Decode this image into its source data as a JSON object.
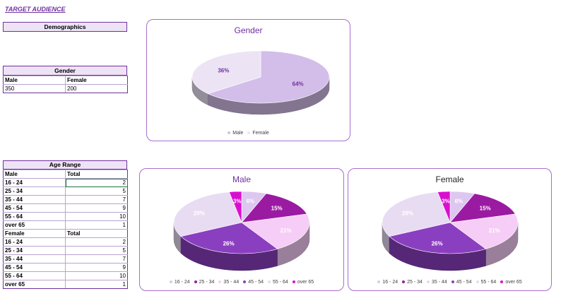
{
  "page_title": "TARGET AUDIENCE",
  "demographics_header": "Demographics",
  "gender_table": {
    "header": "Gender",
    "col1": "Male",
    "col2": "Female",
    "val1": "350",
    "val2": "200"
  },
  "age_table": {
    "header": "Age Range",
    "male_label": "Male",
    "total_label": "Total",
    "female_label": "Female",
    "male_rows": [
      {
        "range": "16 - 24",
        "total": "2"
      },
      {
        "range": "25 - 34",
        "total": "5"
      },
      {
        "range": "35 - 44",
        "total": "7"
      },
      {
        "range": "45 - 54",
        "total": "9"
      },
      {
        "range": "55 - 64",
        "total": "10"
      },
      {
        "range": "over 65",
        "total": "1"
      }
    ],
    "female_rows": [
      {
        "range": "16 - 24",
        "total": "2"
      },
      {
        "range": "25 - 34",
        "total": "5"
      },
      {
        "range": "35 - 44",
        "total": "7"
      },
      {
        "range": "45 - 54",
        "total": "9"
      },
      {
        "range": "55 - 64",
        "total": "10"
      },
      {
        "range": "over 65",
        "total": "1"
      }
    ]
  },
  "chart_data": [
    {
      "type": "pie",
      "title": "Gender",
      "categories": [
        "Male",
        "Female"
      ],
      "values": [
        64,
        36
      ],
      "labels": [
        "64%",
        "36%"
      ],
      "colors": [
        "#d3bde9",
        "#ece4f5"
      ],
      "legend": "bottom"
    },
    {
      "type": "pie",
      "title": "Male",
      "categories": [
        "16 - 24",
        "25 - 34",
        "35 - 44",
        "45 - 54",
        "55 - 64",
        "over 65"
      ],
      "values": [
        2,
        5,
        7,
        9,
        10,
        1
      ],
      "labels": [
        "6%",
        "15%",
        "21%",
        "26%",
        "29%",
        "3%"
      ],
      "colors": [
        "#ddc7f0",
        "#9a1aa2",
        "#f6cdf7",
        "#8a3fc0",
        "#e8dcf3",
        "#d90fd0"
      ],
      "legend": "bottom"
    },
    {
      "type": "pie",
      "title": "Female",
      "categories": [
        "16 - 24",
        "25 - 34",
        "35 - 44",
        "45 - 54",
        "55 - 64",
        "over 65"
      ],
      "values": [
        2,
        5,
        7,
        9,
        10,
        1
      ],
      "labels": [
        "6%",
        "15%",
        "21%",
        "26%",
        "29%",
        "3%"
      ],
      "colors": [
        "#ddc7f0",
        "#9a1aa2",
        "#f6cdf7",
        "#8a3fc0",
        "#e8dcf3",
        "#d90fd0"
      ],
      "legend": "bottom"
    }
  ]
}
